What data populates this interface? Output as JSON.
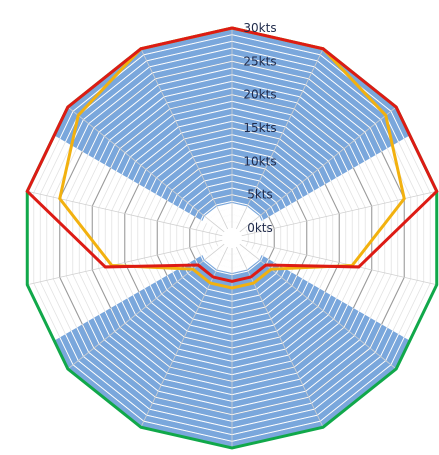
{
  "chart_data": {
    "type": "radar",
    "title": "",
    "axis_count": 14,
    "unit": "kts",
    "r_range": [
      0,
      30
    ],
    "tick_labels": [
      "0kts",
      "5kts",
      "10kts",
      "15kts",
      "20kts",
      "25kts",
      "30kts"
    ],
    "grid": true,
    "shaded_sectors": {
      "color": "#7aa7dc",
      "description_angles_deg": [
        [
          -60,
          60
        ],
        [
          120,
          240
        ]
      ]
    },
    "series": [
      {
        "color": "#dd1b14",
        "values": [
          30,
          30,
          30,
          30,
          18,
          5,
          5,
          5,
          5,
          5,
          18,
          30,
          30,
          30
        ]
      },
      {
        "color": "#f2b10f",
        "values": [
          30,
          30,
          28,
          25,
          17,
          6,
          6,
          6,
          6,
          6,
          17,
          25,
          28,
          30
        ]
      },
      {
        "color": "#11a84a",
        "values": [
          30,
          30,
          30,
          30,
          30,
          30,
          30,
          30,
          30,
          30,
          30,
          30,
          30,
          30
        ]
      }
    ]
  }
}
